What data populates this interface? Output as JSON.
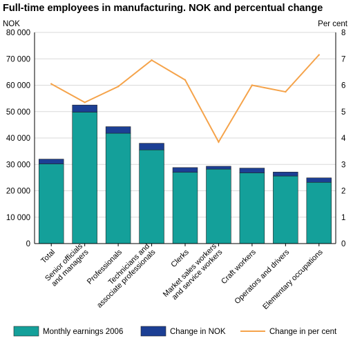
{
  "chart_data": {
    "type": "bar",
    "title": "Full-time employees in manufacturing. NOK and percentual change",
    "y_left_label": "NOK",
    "y_right_label": "Per cent",
    "y_left_range": [
      0,
      80000
    ],
    "y_left_ticks": [
      "0",
      "10 000",
      "20 000",
      "30 000",
      "40 000",
      "50 000",
      "60 000",
      "70 000",
      "80 000"
    ],
    "y_right_range": [
      0,
      8
    ],
    "y_right_ticks": [
      "0",
      "1",
      "2",
      "3",
      "4",
      "5",
      "6",
      "7",
      "8"
    ],
    "grid": true,
    "legend_position": "bottom",
    "categories": [
      [
        "Total"
      ],
      [
        "Senior officials",
        "and managers"
      ],
      [
        "Professionals"
      ],
      [
        "Technicians and",
        "associate professionals"
      ],
      [
        "Clerks"
      ],
      [
        "Market sales workers",
        "and service workers"
      ],
      [
        "Craft workers"
      ],
      [
        "Operators and drivers"
      ],
      [
        "Elementary occupations"
      ]
    ],
    "series": [
      {
        "name": "Monthly earnings 2006",
        "kind": "bar-stacked",
        "axis": "left",
        "color": "#14a09a",
        "values": [
          30200,
          49800,
          41800,
          35500,
          27000,
          28200,
          26800,
          25600,
          23200
        ]
      },
      {
        "name": "Change in NOK",
        "kind": "bar-stacked",
        "axis": "left",
        "color": "#1c3f94",
        "values": [
          1800,
          2700,
          2500,
          2500,
          1800,
          1100,
          1800,
          1500,
          1700
        ]
      },
      {
        "name": "Change in per cent",
        "kind": "line",
        "axis": "right",
        "color": "#f5a34a",
        "values": [
          6.05,
          5.35,
          5.95,
          6.95,
          6.2,
          3.85,
          6.0,
          5.75,
          7.15
        ]
      }
    ]
  }
}
